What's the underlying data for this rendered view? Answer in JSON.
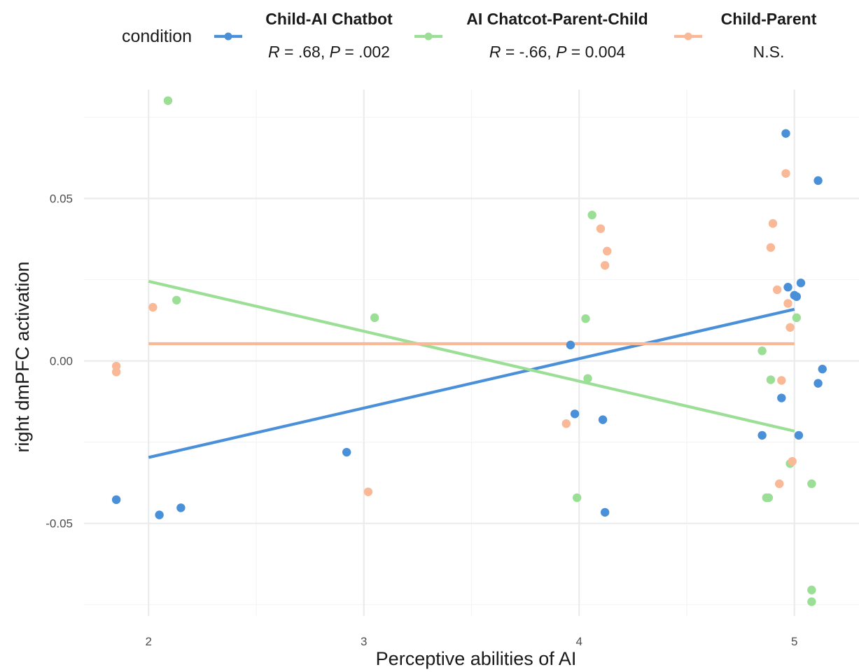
{
  "chart_data": {
    "type": "scatter",
    "xlabel": "Perceptive abilities of AI",
    "ylabel": "right dmPFC activation",
    "xlim": [
      1.7,
      5.3
    ],
    "ylim": [
      -0.0785,
      0.0835
    ],
    "x_ticks": [
      2,
      3,
      4,
      5
    ],
    "x_tick_labels": [
      "2",
      "3",
      "4",
      "5"
    ],
    "y_ticks": [
      -0.05,
      0.0,
      0.05
    ],
    "y_tick_labels": [
      "-0.05",
      "0.00",
      "0.05"
    ],
    "grid": true,
    "legend": {
      "title": "condition",
      "position": "top"
    },
    "series": [
      {
        "name": "Child-AI Chatbot",
        "stat": "R = .68, P = .002",
        "stat_parts": [
          "R",
          " = .68, ",
          "P",
          " = .002"
        ],
        "color": "#4a90d9",
        "fit": {
          "x": [
            2.0,
            5.0
          ],
          "y": [
            -0.0297,
            0.0159
          ]
        },
        "points": [
          [
            1.85,
            -0.0427
          ],
          [
            2.05,
            -0.0474
          ],
          [
            2.15,
            -0.0452
          ],
          [
            2.92,
            -0.0281
          ],
          [
            3.96,
            0.0049
          ],
          [
            3.98,
            -0.0163
          ],
          [
            4.11,
            -0.0181
          ],
          [
            4.12,
            -0.0466
          ],
          [
            4.85,
            -0.0229
          ],
          [
            4.94,
            -0.0114
          ],
          [
            4.96,
            0.07
          ],
          [
            4.97,
            0.0227
          ],
          [
            5.0,
            0.0202
          ],
          [
            5.01,
            0.0198
          ],
          [
            5.02,
            -0.0229
          ],
          [
            5.03,
            0.024
          ],
          [
            5.11,
            -0.0069
          ],
          [
            5.11,
            0.0555
          ],
          [
            5.13,
            -0.0025
          ]
        ]
      },
      {
        "name": "AI Chatcot-Parent-Child",
        "stat": "R = -.66, P = 0.004",
        "stat_parts": [
          "R",
          " = -.66, ",
          "P",
          " = 0.004"
        ],
        "color": "#9bde95",
        "fit": {
          "x": [
            2.0,
            5.0
          ],
          "y": [
            0.0245,
            -0.0216
          ]
        },
        "points": [
          [
            2.09,
            0.0801
          ],
          [
            2.13,
            0.0187
          ],
          [
            3.05,
            0.0133
          ],
          [
            4.03,
            0.013
          ],
          [
            4.04,
            -0.0054
          ],
          [
            4.06,
            0.0449
          ],
          [
            3.99,
            -0.0421
          ],
          [
            4.85,
            0.0031
          ],
          [
            4.87,
            -0.0421
          ],
          [
            4.88,
            -0.0421
          ],
          [
            4.89,
            -0.0058
          ],
          [
            4.98,
            -0.0316
          ],
          [
            5.01,
            0.0133
          ],
          [
            5.08,
            -0.0378
          ],
          [
            5.08,
            -0.0705
          ],
          [
            5.08,
            -0.0741
          ]
        ]
      },
      {
        "name": "Child-Parent",
        "stat": "N.S.",
        "stat_parts": [],
        "color": "#f9b896",
        "fit": {
          "x": [
            2.0,
            5.0
          ],
          "y": [
            0.0053,
            0.0053
          ]
        },
        "points": [
          [
            1.85,
            -0.0016
          ],
          [
            1.85,
            -0.0034
          ],
          [
            2.02,
            0.0165
          ],
          [
            3.02,
            -0.0403
          ],
          [
            3.94,
            -0.0193
          ],
          [
            4.1,
            0.0407
          ],
          [
            4.12,
            0.0294
          ],
          [
            4.13,
            0.0338
          ],
          [
            4.89,
            0.0349
          ],
          [
            4.9,
            0.0423
          ],
          [
            4.92,
            0.0219
          ],
          [
            4.93,
            -0.0378
          ],
          [
            4.94,
            -0.006
          ],
          [
            4.96,
            0.0577
          ],
          [
            4.97,
            0.0177
          ],
          [
            4.98,
            0.0103
          ],
          [
            4.99,
            -0.0309
          ]
        ]
      }
    ]
  }
}
